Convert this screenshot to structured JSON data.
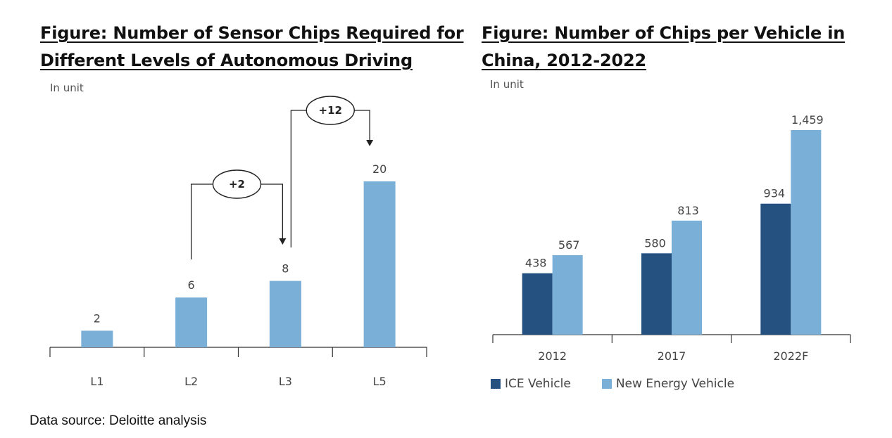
{
  "source": "Data source: Deloitte analysis",
  "chart_data": [
    {
      "type": "bar",
      "title": "Figure: Number of Sensor Chips Required for Different Levels of Autonomous Driving",
      "unit_label": "In unit",
      "categories": [
        "L1",
        "L2",
        "L3",
        "L5"
      ],
      "values": [
        2,
        6,
        8,
        20
      ],
      "value_labels": [
        "2",
        "6",
        "8",
        "20"
      ],
      "ylim": [
        0,
        20
      ],
      "grid": false,
      "annotations": [
        {
          "text": "+2",
          "from": "L2",
          "to": "L3"
        },
        {
          "text": "+12",
          "from": "L3",
          "to": "L5"
        }
      ],
      "colors": {
        "bar": "#7aafd8"
      }
    },
    {
      "type": "bar",
      "title": "Figure: Number of Chips per Vehicle in China, 2012-2022",
      "unit_label": "In unit",
      "categories": [
        "2012",
        "2017",
        "2022F"
      ],
      "series": [
        {
          "name": "ICE Vehicle",
          "values": [
            438,
            580,
            934
          ],
          "labels": [
            "438",
            "580",
            "934"
          ],
          "color": "#24517f"
        },
        {
          "name": "New Energy Vehicle",
          "values": [
            567,
            813,
            1459
          ],
          "labels": [
            "567",
            "813",
            "1,459"
          ],
          "color": "#7aafd8"
        }
      ],
      "ylim": [
        0,
        1459
      ],
      "grid": false,
      "legend": "bottom-left"
    }
  ]
}
